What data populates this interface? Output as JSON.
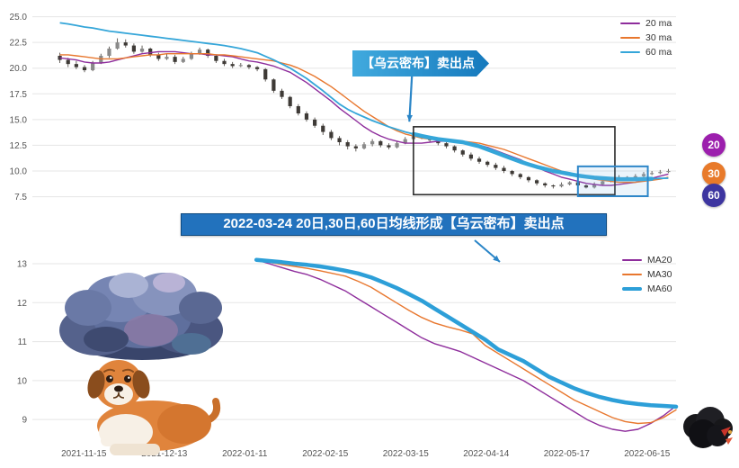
{
  "callout": {
    "text": "【乌云密布】卖出点"
  },
  "banner": {
    "text": "2022-03-24 20日,30日,60日均线形成【乌云密布】卖出点"
  },
  "colors": {
    "ma20": "#8e2d9c",
    "ma30": "#e8772e",
    "ma60": "#35a6d9",
    "candle_up": "#8a8a8a",
    "candle_down": "#3e3a36",
    "sell_box": "#2b2b2b",
    "zoom_box": "#2e86c8",
    "arrow": "#2a85c7",
    "callout_bg": "#2196d3",
    "banner_bg": "#2272bd"
  },
  "end_badges": [
    {
      "label": "20",
      "color": "#9c1fad"
    },
    {
      "label": "30",
      "color": "#e87a2a"
    },
    {
      "label": "60",
      "color": "#3d35a0"
    }
  ],
  "decorations": {
    "storm_cloud": "storm-cloud-illustration",
    "dog": "dog-illustration",
    "dark_cloud": "dark-cloud-illustration"
  },
  "chart_data": [
    {
      "type": "candlestick",
      "title": "",
      "ylabel": "",
      "ylim": [
        7.2,
        25.4
      ],
      "y_ticks": [
        7.5,
        10.0,
        12.5,
        15.0,
        17.5,
        20.0,
        22.5,
        25.0
      ],
      "grid": true,
      "legend_position": "top-right",
      "candles": [
        [
          21.2,
          21.5,
          20.5,
          20.8
        ],
        [
          20.8,
          21.0,
          20.1,
          20.4
        ],
        [
          20.4,
          20.7,
          19.9,
          20.1
        ],
        [
          20.1,
          20.3,
          19.6,
          19.8
        ],
        [
          19.8,
          20.7,
          19.7,
          20.5
        ],
        [
          20.5,
          21.4,
          20.4,
          21.2
        ],
        [
          21.2,
          22.1,
          21.0,
          21.9
        ],
        [
          21.9,
          22.9,
          21.8,
          22.5
        ],
        [
          22.5,
          22.8,
          22.0,
          22.2
        ],
        [
          22.2,
          22.4,
          21.4,
          21.6
        ],
        [
          21.6,
          22.2,
          21.5,
          21.9
        ],
        [
          21.9,
          22.0,
          21.1,
          21.3
        ],
        [
          21.3,
          21.5,
          20.7,
          20.9
        ],
        [
          20.9,
          21.4,
          20.8,
          21.1
        ],
        [
          21.1,
          21.3,
          20.4,
          20.6
        ],
        [
          20.6,
          21.1,
          20.5,
          20.9
        ],
        [
          20.9,
          21.6,
          20.8,
          21.4
        ],
        [
          21.4,
          22.0,
          21.3,
          21.8
        ],
        [
          21.8,
          21.9,
          21.0,
          21.2
        ],
        [
          21.2,
          21.3,
          20.5,
          20.7
        ],
        [
          20.7,
          20.9,
          20.2,
          20.4
        ],
        [
          20.4,
          20.6,
          20.0,
          20.2
        ],
        [
          20.2,
          20.5,
          20.1,
          20.3
        ],
        [
          20.3,
          20.4,
          19.9,
          20.1
        ],
        [
          20.1,
          20.2,
          19.7,
          19.9
        ],
        [
          19.9,
          20.0,
          18.7,
          18.9
        ],
        [
          18.9,
          19.0,
          17.6,
          17.8
        ],
        [
          17.8,
          18.0,
          17.0,
          17.2
        ],
        [
          17.2,
          17.3,
          16.1,
          16.3
        ],
        [
          16.3,
          16.5,
          15.4,
          15.6
        ],
        [
          15.6,
          15.8,
          14.8,
          15.0
        ],
        [
          15.0,
          15.2,
          14.2,
          14.4
        ],
        [
          14.4,
          14.6,
          13.5,
          13.8
        ],
        [
          13.8,
          14.0,
          13.0,
          13.2
        ],
        [
          13.2,
          13.4,
          12.5,
          12.8
        ],
        [
          12.8,
          13.0,
          12.1,
          12.4
        ],
        [
          12.4,
          12.6,
          11.9,
          12.2
        ],
        [
          12.2,
          12.8,
          12.1,
          12.6
        ],
        [
          12.6,
          13.1,
          12.4,
          12.9
        ],
        [
          12.9,
          13.0,
          12.3,
          12.5
        ],
        [
          12.5,
          12.7,
          12.1,
          12.3
        ],
        [
          12.3,
          12.9,
          12.2,
          12.7
        ],
        [
          12.7,
          13.3,
          12.6,
          13.1
        ],
        [
          13.1,
          13.6,
          13.0,
          13.4
        ],
        [
          13.4,
          13.5,
          13.1,
          13.3
        ],
        [
          13.3,
          13.4,
          12.8,
          13.0
        ],
        [
          13.0,
          13.1,
          12.5,
          12.7
        ],
        [
          12.7,
          12.8,
          12.2,
          12.4
        ],
        [
          12.4,
          12.5,
          11.8,
          12.0
        ],
        [
          12.0,
          12.1,
          11.4,
          11.6
        ],
        [
          11.6,
          11.8,
          11.0,
          11.2
        ],
        [
          11.2,
          11.4,
          10.7,
          10.9
        ],
        [
          10.9,
          11.0,
          10.4,
          10.6
        ],
        [
          10.6,
          10.8,
          10.1,
          10.3
        ],
        [
          10.3,
          10.5,
          9.8,
          10.0
        ],
        [
          10.0,
          10.1,
          9.5,
          9.7
        ],
        [
          9.7,
          9.8,
          9.2,
          9.4
        ],
        [
          9.4,
          9.5,
          8.9,
          9.1
        ],
        [
          9.1,
          9.2,
          8.6,
          8.8
        ],
        [
          8.8,
          8.9,
          8.4,
          8.6
        ],
        [
          8.6,
          8.7,
          8.3,
          8.5
        ],
        [
          8.5,
          8.9,
          8.4,
          8.7
        ],
        [
          8.7,
          9.0,
          8.6,
          8.9
        ],
        [
          8.9,
          9.0,
          8.4,
          8.6
        ],
        [
          8.6,
          8.7,
          8.3,
          8.4
        ],
        [
          8.4,
          8.9,
          8.3,
          8.7
        ],
        [
          8.7,
          9.1,
          8.6,
          9.0
        ],
        [
          9.0,
          9.4,
          8.9,
          9.2
        ],
        [
          9.2,
          9.6,
          9.1,
          9.4
        ],
        [
          9.4,
          9.5,
          9.2,
          9.3
        ],
        [
          9.3,
          9.7,
          9.2,
          9.5
        ],
        [
          9.5,
          9.9,
          9.4,
          9.7
        ],
        [
          9.7,
          10.0,
          9.6,
          9.8
        ],
        [
          9.8,
          10.1,
          9.7,
          9.9
        ],
        [
          9.9,
          10.2,
          9.8,
          10.0
        ]
      ],
      "series": [
        {
          "name": "20 ma",
          "color": "#8e2d9c",
          "width": 1.4,
          "values": [
            21.0,
            20.9,
            20.8,
            20.6,
            20.5,
            20.5,
            20.6,
            20.8,
            21.0,
            21.2,
            21.4,
            21.5,
            21.6,
            21.6,
            21.6,
            21.5,
            21.4,
            21.4,
            21.3,
            21.3,
            21.2,
            21.1,
            20.9,
            20.7,
            20.6,
            20.4,
            20.2,
            19.9,
            19.6,
            19.1,
            18.6,
            18.0,
            17.4,
            16.8,
            16.1,
            15.5,
            14.9,
            14.3,
            13.8,
            13.4,
            13.1,
            12.9,
            12.7,
            12.7,
            12.7,
            12.8,
            12.9,
            12.9,
            12.9,
            12.8,
            12.7,
            12.5,
            12.3,
            12.0,
            11.7,
            11.4,
            11.1,
            10.7,
            10.4,
            10.0,
            9.7,
            9.4,
            9.2,
            9.0,
            8.8,
            8.7,
            8.6,
            8.6,
            8.7,
            8.8,
            8.9,
            9.1,
            9.3,
            9.5,
            9.7
          ]
        },
        {
          "name": "30 ma",
          "color": "#e8772e",
          "width": 1.4,
          "values": [
            21.3,
            21.3,
            21.2,
            21.1,
            21.0,
            20.9,
            20.9,
            20.9,
            21.0,
            21.1,
            21.2,
            21.3,
            21.3,
            21.4,
            21.4,
            21.4,
            21.4,
            21.4,
            21.4,
            21.3,
            21.3,
            21.2,
            21.1,
            21.0,
            20.9,
            20.8,
            20.7,
            20.5,
            20.3,
            20.0,
            19.6,
            19.2,
            18.7,
            18.2,
            17.6,
            17.0,
            16.4,
            15.8,
            15.3,
            14.8,
            14.3,
            13.9,
            13.6,
            13.4,
            13.2,
            13.1,
            13.1,
            13.0,
            13.0,
            12.9,
            12.8,
            12.7,
            12.5,
            12.3,
            12.1,
            11.8,
            11.5,
            11.2,
            10.9,
            10.6,
            10.3,
            10.0,
            9.8,
            9.6,
            9.4,
            9.2,
            9.1,
            9.0,
            8.9,
            8.9,
            8.9,
            9.0,
            9.1,
            9.2,
            9.4
          ]
        },
        {
          "name": "60 ma",
          "color": "#35a6d9",
          "width": 1.8,
          "thick_from": 43,
          "thick_to": 72,
          "thick_width": 4.5,
          "values": [
            24.4,
            24.3,
            24.15,
            24.0,
            23.9,
            23.75,
            23.6,
            23.5,
            23.4,
            23.3,
            23.2,
            23.1,
            23.0,
            22.9,
            22.8,
            22.7,
            22.6,
            22.5,
            22.4,
            22.3,
            22.2,
            22.05,
            21.9,
            21.7,
            21.5,
            21.15,
            20.8,
            20.4,
            20.0,
            19.5,
            19.0,
            18.4,
            17.8,
            17.15,
            16.5,
            16.0,
            15.6,
            15.25,
            14.9,
            14.6,
            14.3,
            14.05,
            13.8,
            13.6,
            13.4,
            13.25,
            13.1,
            13.0,
            12.9,
            12.8,
            12.6,
            12.4,
            12.1,
            11.8,
            11.5,
            11.2,
            10.9,
            10.65,
            10.4,
            10.2,
            10.0,
            9.85,
            9.7,
            9.55,
            9.45,
            9.35,
            9.3,
            9.25,
            9.2,
            9.2,
            9.2,
            9.22,
            9.25,
            9.28,
            9.3
          ]
        }
      ],
      "annotations": {
        "sell_box": {
          "i0": 43,
          "i1": 67.5,
          "v_low": 7.7,
          "v_high": 14.3
        },
        "zoom_box": {
          "i0": 63,
          "i1": 71.5,
          "v_low": 7.55,
          "v_high": 10.45
        },
        "arrow": {
          "i": 42.5,
          "v_from": 19.4,
          "v_to": 14.8
        }
      }
    },
    {
      "type": "line",
      "title": "",
      "ylim": [
        8.45,
        13.3
      ],
      "y_ticks": [
        9,
        10,
        11,
        12,
        13
      ],
      "grid": true,
      "legend_position": "top-right",
      "start_frac": 0.348,
      "x_labels": [
        "2021-11-15",
        "2021-12-13",
        "2022-01-11",
        "2022-02-15",
        "2022-03-15",
        "2022-04-14",
        "2022-05-17",
        "2022-06-15"
      ],
      "series": [
        {
          "name": "MA20",
          "color": "#8e2d9c",
          "width": 1.4,
          "values": [
            13.1,
            13.0,
            12.9,
            12.8,
            12.72,
            12.6,
            12.45,
            12.3,
            12.1,
            11.9,
            11.7,
            11.5,
            11.3,
            11.1,
            10.95,
            10.85,
            10.75,
            10.6,
            10.45,
            10.3,
            10.15,
            10.0,
            9.8,
            9.6,
            9.4,
            9.2,
            9.0,
            8.85,
            8.75,
            8.7,
            8.75,
            8.9,
            9.1,
            9.35
          ]
        },
        {
          "name": "MA30",
          "color": "#e8772e",
          "width": 1.4,
          "values": [
            13.1,
            13.04,
            12.98,
            12.93,
            12.88,
            12.82,
            12.75,
            12.68,
            12.55,
            12.4,
            12.2,
            12.0,
            11.8,
            11.62,
            11.48,
            11.38,
            11.3,
            11.2,
            10.9,
            10.7,
            10.5,
            10.3,
            10.1,
            9.9,
            9.7,
            9.5,
            9.35,
            9.2,
            9.05,
            8.95,
            8.9,
            8.92,
            9.05,
            9.25
          ]
        },
        {
          "name": "MA60",
          "color": "#2d9fd8",
          "width": 4.5,
          "values": [
            13.1,
            13.07,
            13.04,
            13.0,
            12.97,
            12.93,
            12.88,
            12.82,
            12.75,
            12.65,
            12.52,
            12.38,
            12.22,
            12.05,
            11.85,
            11.65,
            11.45,
            11.25,
            11.05,
            10.8,
            10.65,
            10.5,
            10.3,
            10.1,
            9.95,
            9.8,
            9.68,
            9.58,
            9.5,
            9.44,
            9.4,
            9.37,
            9.35,
            9.33
          ]
        }
      ]
    }
  ]
}
